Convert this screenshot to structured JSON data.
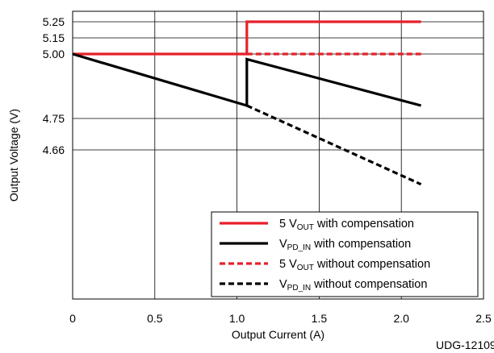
{
  "chart_data": {
    "type": "line",
    "xlabel": "Output Current (A)",
    "ylabel": "Output Voltage (V)",
    "xlim": [
      0,
      2.5
    ],
    "x_ticks": [
      "0",
      "0.5",
      "1.0",
      "1.5",
      "2.0",
      "2.5"
    ],
    "y_tick_values": [
      5.25,
      5.15,
      5.0,
      4.75,
      4.66
    ],
    "y_ticks": [
      "5.25",
      "5.15",
      "5.00",
      "4.75",
      "4.66"
    ],
    "grid": true,
    "legend_position": "bottom-right",
    "footnote": "UDG-12109",
    "series": [
      {
        "id": "vout_comp",
        "name": "5 V_OUT with compensation",
        "color": "#e8202a",
        "dash": "solid",
        "x": [
          0,
          1.06,
          1.06,
          2.12
        ],
        "y": [
          5.0,
          5.0,
          5.25,
          5.25
        ]
      },
      {
        "id": "vpd_comp",
        "name": "V_PD_IN with compensation",
        "color": "#000000",
        "dash": "solid",
        "x": [
          0,
          1.06,
          1.06,
          2.12
        ],
        "y": [
          5.0,
          4.8,
          4.98,
          4.8
        ]
      },
      {
        "id": "vout_nocomp",
        "name": "5 V_OUT without compensation",
        "color": "#e8202a",
        "dash": "dashed",
        "x": [
          1.06,
          2.12
        ],
        "y": [
          5.0,
          5.0
        ]
      },
      {
        "id": "vpd_nocomp",
        "name": "V_PD_IN without compensation",
        "color": "#000000",
        "dash": "dashed",
        "x": [
          1.06,
          2.12
        ],
        "y": [
          4.8,
          4.6
        ]
      }
    ],
    "legend": [
      {
        "series": "vout_comp",
        "pre": "5 V",
        "sub": "OUT",
        "post": " with compensation"
      },
      {
        "series": "vpd_comp",
        "pre": "V",
        "sub": "PD_IN",
        "post": " with compensation"
      },
      {
        "series": "vout_nocomp",
        "pre": "5 V",
        "sub": "OUT",
        "post": " without compensation"
      },
      {
        "series": "vpd_nocomp",
        "pre": "V",
        "sub": "PD_IN",
        "post": " without compensation"
      }
    ]
  }
}
